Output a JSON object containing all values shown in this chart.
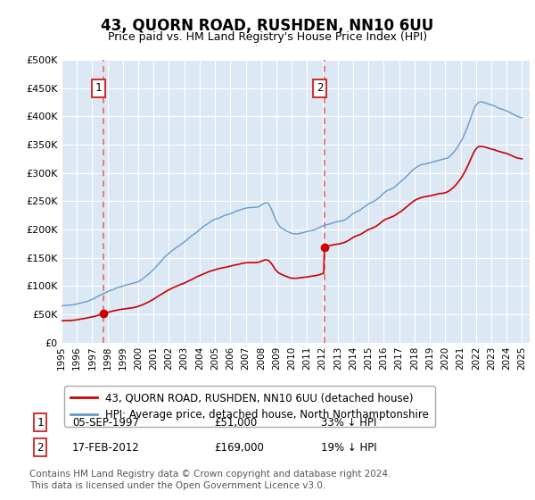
{
  "title": "43, QUORN ROAD, RUSHDEN, NN10 6UU",
  "subtitle": "Price paid vs. HM Land Registry's House Price Index (HPI)",
  "plot_bg_color": "#dce9f5",
  "red_line_label": "43, QUORN ROAD, RUSHDEN, NN10 6UU (detached house)",
  "blue_line_label": "HPI: Average price, detached house, North Northamptonshire",
  "annotation1_date": "05-SEP-1997",
  "annotation1_price": "£51,000",
  "annotation1_hpi": "33% ↓ HPI",
  "annotation1_year": 1997.71,
  "annotation1_value": 51000,
  "annotation2_date": "17-FEB-2012",
  "annotation2_price": "£169,000",
  "annotation2_hpi": "19% ↓ HPI",
  "annotation2_year": 2012.12,
  "annotation2_value": 169000,
  "footer_line1": "Contains HM Land Registry data © Crown copyright and database right 2024.",
  "footer_line2": "This data is licensed under the Open Government Licence v3.0.",
  "ylabel_ticks": [
    "£0",
    "£50K",
    "£100K",
    "£150K",
    "£200K",
    "£250K",
    "£300K",
    "£350K",
    "£400K",
    "£450K",
    "£500K"
  ],
  "ytick_values": [
    0,
    50000,
    100000,
    150000,
    200000,
    250000,
    300000,
    350000,
    400000,
    450000,
    500000
  ],
  "xlim_low": 1995.0,
  "xlim_high": 2025.5,
  "ylim_low": 0,
  "ylim_high": 500000,
  "red_color": "#cc0000",
  "blue_color": "#6699cc",
  "dashed_color": "#ee6666",
  "box_edge_color": "#cc3333",
  "legend_edge_color": "#aaaaaa",
  "grid_color": "#ffffff",
  "title_fontsize": 12,
  "subtitle_fontsize": 9,
  "tick_fontsize": 8,
  "legend_fontsize": 8.5,
  "annot_fontsize": 8.5,
  "footer_fontsize": 7.5
}
